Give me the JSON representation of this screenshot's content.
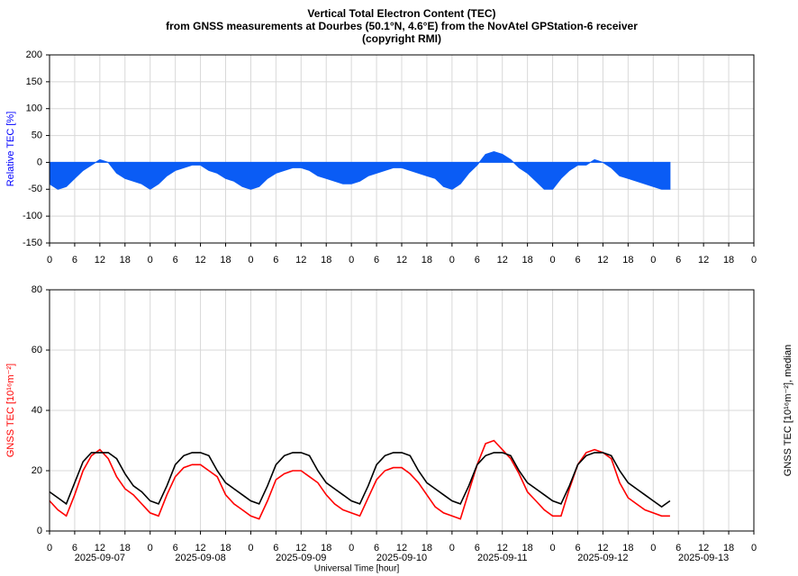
{
  "chart_data": [
    {
      "type": "area",
      "title": [
        "Vertical Total Electron Content (TEC)",
        "from GNSS measurements at Dourbes (50.1°N, 4.6°E) from the NovAtel GPStation-6 receiver",
        "(copyright RMI)"
      ],
      "ylabel": "Relative TEC [%]",
      "ylabel_color": "#0000ff",
      "xlim": [
        0,
        168
      ],
      "xticks": [
        0,
        6,
        12,
        18,
        {
          "value": 24,
          "label": "0"
        },
        {
          "value": 30,
          "label": "6"
        },
        {
          "value": 36,
          "label": "12"
        },
        {
          "value": 42,
          "label": "18"
        },
        {
          "value": 48,
          "label": "0"
        },
        {
          "value": 54,
          "label": "6"
        },
        {
          "value": 60,
          "label": "12"
        },
        {
          "value": 66,
          "label": "18"
        },
        {
          "value": 72,
          "label": "0"
        },
        {
          "value": 78,
          "label": "6"
        },
        {
          "value": 84,
          "label": "12"
        },
        {
          "value": 90,
          "label": "18"
        },
        {
          "value": 96,
          "label": "0"
        },
        {
          "value": 102,
          "label": "6"
        },
        {
          "value": 108,
          "label": "12"
        },
        {
          "value": 114,
          "label": "18"
        },
        {
          "value": 120,
          "label": "0"
        },
        {
          "value": 126,
          "label": "6"
        },
        {
          "value": 132,
          "label": "12"
        },
        {
          "value": 138,
          "label": "18"
        },
        {
          "value": 144,
          "label": "0"
        },
        {
          "value": 150,
          "label": "6"
        },
        {
          "value": 156,
          "label": "12"
        },
        {
          "value": 162,
          "label": "18"
        },
        {
          "value": 168,
          "label": "0"
        }
      ],
      "ylim": [
        -150,
        200
      ],
      "yticks": [
        -150,
        -100,
        -50,
        0,
        50,
        100,
        150,
        200
      ],
      "grid": true,
      "x": [
        0,
        2,
        4,
        6,
        8,
        10,
        12,
        14,
        16,
        18,
        20,
        22,
        24,
        26,
        28,
        30,
        32,
        34,
        36,
        38,
        40,
        42,
        44,
        46,
        48,
        50,
        52,
        54,
        56,
        58,
        60,
        62,
        64,
        66,
        68,
        70,
        72,
        74,
        76,
        78,
        80,
        82,
        84,
        86,
        88,
        90,
        92,
        94,
        96,
        98,
        100,
        102,
        104,
        106,
        108,
        110,
        112,
        114,
        116,
        118,
        120,
        122,
        124,
        126,
        128,
        130,
        132,
        134,
        136,
        138,
        140,
        142,
        144,
        146,
        148
      ],
      "series": [
        {
          "color": "#0a5cf5",
          "values": [
            -40,
            -50,
            -45,
            -30,
            -15,
            -5,
            5,
            0,
            -20,
            -30,
            -35,
            -40,
            -50,
            -40,
            -25,
            -15,
            -10,
            -5,
            -5,
            -15,
            -20,
            -30,
            -35,
            -45,
            -50,
            -45,
            -30,
            -20,
            -15,
            -10,
            -10,
            -15,
            -25,
            -30,
            -35,
            -40,
            -40,
            -35,
            -25,
            -20,
            -15,
            -10,
            -10,
            -15,
            -20,
            -25,
            -30,
            -45,
            -50,
            -40,
            -20,
            -5,
            15,
            20,
            15,
            5,
            -10,
            -20,
            -35,
            -50,
            -50,
            -30,
            -15,
            -5,
            -5,
            5,
            0,
            -10,
            -25,
            -30,
            -35,
            -40,
            -45,
            -50,
            -50
          ]
        }
      ]
    },
    {
      "type": "line",
      "ylabel": "GNSS TEC [10¹⁶m⁻²]",
      "ylabel_color": "#ff0000",
      "y2label": "GNSS TEC [10¹⁶m⁻²], median",
      "xlabel": "Universal Time [hour]",
      "xlim": [
        0,
        168
      ],
      "xticks": [
        0,
        6,
        12,
        18,
        {
          "value": 24,
          "label": "0"
        },
        {
          "value": 30,
          "label": "6"
        },
        {
          "value": 36,
          "label": "12"
        },
        {
          "value": 42,
          "label": "18"
        },
        {
          "value": 48,
          "label": "0"
        },
        {
          "value": 54,
          "label": "6"
        },
        {
          "value": 60,
          "label": "12"
        },
        {
          "value": 66,
          "label": "18"
        },
        {
          "value": 72,
          "label": "0"
        },
        {
          "value": 78,
          "label": "6"
        },
        {
          "value": 84,
          "label": "12"
        },
        {
          "value": 90,
          "label": "18"
        },
        {
          "value": 96,
          "label": "0"
        },
        {
          "value": 102,
          "label": "6"
        },
        {
          "value": 108,
          "label": "12"
        },
        {
          "value": 114,
          "label": "18"
        },
        {
          "value": 120,
          "label": "0"
        },
        {
          "value": 126,
          "label": "6"
        },
        {
          "value": 132,
          "label": "12"
        },
        {
          "value": 138,
          "label": "18"
        },
        {
          "value": 144,
          "label": "0"
        },
        {
          "value": 150,
          "label": "6"
        },
        {
          "value": 156,
          "label": "12"
        },
        {
          "value": 162,
          "label": "18"
        },
        {
          "value": 168,
          "label": "0"
        }
      ],
      "day_labels": [
        {
          "value": 12,
          "label": "2025-09-07"
        },
        {
          "value": 36,
          "label": "2025-09-08"
        },
        {
          "value": 60,
          "label": "2025-09-09"
        },
        {
          "value": 84,
          "label": "2025-09-10"
        },
        {
          "value": 108,
          "label": "2025-09-11"
        },
        {
          "value": 132,
          "label": "2025-09-12"
        },
        {
          "value": 156,
          "label": "2025-09-13"
        }
      ],
      "ylim": [
        0,
        80
      ],
      "yticks": [
        0,
        20,
        40,
        60,
        80
      ],
      "grid": true,
      "x": [
        0,
        2,
        4,
        6,
        8,
        10,
        12,
        14,
        16,
        18,
        20,
        22,
        24,
        26,
        28,
        30,
        32,
        34,
        36,
        38,
        40,
        42,
        44,
        46,
        48,
        50,
        52,
        54,
        56,
        58,
        60,
        62,
        64,
        66,
        68,
        70,
        72,
        74,
        76,
        78,
        80,
        82,
        84,
        86,
        88,
        90,
        92,
        94,
        96,
        98,
        100,
        102,
        104,
        106,
        108,
        110,
        112,
        114,
        116,
        118,
        120,
        122,
        124,
        126,
        128,
        130,
        132,
        134,
        136,
        138,
        140,
        142,
        144,
        146,
        148
      ],
      "series": [
        {
          "color": "#ff0000",
          "values": [
            10,
            7,
            5,
            12,
            20,
            25,
            27,
            24,
            18,
            14,
            12,
            9,
            6,
            5,
            12,
            18,
            21,
            22,
            22,
            20,
            18,
            12,
            9,
            7,
            5,
            4,
            10,
            17,
            19,
            20,
            20,
            18,
            16,
            12,
            9,
            7,
            6,
            5,
            11,
            17,
            20,
            21,
            21,
            19,
            16,
            12,
            8,
            6,
            5,
            4,
            13,
            22,
            29,
            30,
            27,
            24,
            19,
            13,
            10,
            7,
            5,
            5,
            14,
            22,
            26,
            27,
            26,
            24,
            16,
            11,
            9,
            7,
            6,
            5,
            5
          ]
        },
        {
          "color": "#000000",
          "values": [
            13,
            11,
            9,
            16,
            23,
            26,
            26,
            26,
            24,
            19,
            15,
            13,
            10,
            9,
            15,
            22,
            25,
            26,
            26,
            25,
            20,
            16,
            14,
            12,
            10,
            9,
            15,
            22,
            25,
            26,
            26,
            25,
            20,
            16,
            14,
            12,
            10,
            9,
            15,
            22,
            25,
            26,
            26,
            25,
            20,
            16,
            14,
            12,
            10,
            9,
            15,
            22,
            25,
            26,
            26,
            25,
            20,
            16,
            14,
            12,
            10,
            9,
            15,
            22,
            25,
            26,
            26,
            25,
            20,
            16,
            14,
            12,
            10,
            8,
            10
          ]
        }
      ]
    }
  ]
}
